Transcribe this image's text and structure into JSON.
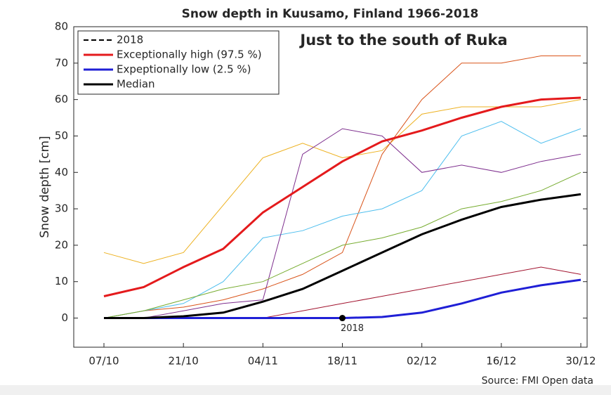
{
  "chart_data": {
    "type": "line",
    "title": "Snow depth in Kuusamo, Finland 1966-2018",
    "subtitle": "Just to the south of Ruka",
    "ylabel": "Snow depth [cm]",
    "source": "Source: FMI Open data",
    "annotation": "2018",
    "categories": [
      "07/10",
      null,
      "21/10",
      null,
      "04/11",
      null,
      "18/11",
      null,
      "02/12",
      null,
      "16/12",
      null,
      "30/12"
    ],
    "ylim": [
      -8,
      80
    ],
    "yticks": [
      0,
      10,
      20,
      30,
      40,
      50,
      60,
      70,
      80
    ],
    "legend": "upper left",
    "background_series": [
      {
        "color": "#edb120",
        "values": [
          18,
          15,
          18,
          31,
          44,
          48,
          44,
          46,
          56,
          58,
          58,
          58,
          60
        ]
      },
      {
        "color": "#d95319",
        "values": [
          0,
          2,
          3,
          5,
          8,
          12,
          18,
          45,
          60,
          70,
          70,
          72,
          72
        ]
      },
      {
        "color": "#4dbeee",
        "values": [
          0,
          2,
          4,
          10,
          22,
          24,
          28,
          30,
          35,
          50,
          54,
          48,
          52
        ]
      },
      {
        "color": "#7e2f8e",
        "values": [
          0,
          0,
          2,
          4,
          5,
          45,
          52,
          50,
          40,
          42,
          40,
          43,
          45
        ]
      },
      {
        "color": "#77ac30",
        "values": [
          0,
          2,
          5,
          8,
          10,
          15,
          20,
          22,
          25,
          30,
          32,
          35,
          40
        ]
      },
      {
        "color": "#a2142f",
        "values": [
          0,
          0,
          0,
          0,
          0,
          2,
          4,
          6,
          8,
          10,
          12,
          14,
          12
        ]
      }
    ],
    "series": [
      {
        "name": "2018",
        "color": "#000000",
        "linestyle": "dashed",
        "values": [
          0,
          0,
          0,
          0,
          0,
          0,
          0,
          null,
          null,
          null,
          null,
          null,
          null
        ]
      },
      {
        "name": "Exceptionally high (97.5 %)",
        "color": "#e41a1c",
        "linestyle": "solid",
        "values": [
          6,
          8.5,
          14,
          19,
          29,
          36,
          43,
          48.5,
          51.5,
          55,
          58,
          60,
          60.5
        ]
      },
      {
        "name": "Expeptionally low (2.5 %)",
        "color": "#1f1fd6",
        "linestyle": "solid",
        "values": [
          0,
          0,
          0,
          0,
          0,
          0,
          0,
          0.3,
          1.5,
          4,
          7,
          9,
          10.5
        ]
      },
      {
        "name": "Median",
        "color": "#000000",
        "linestyle": "solid",
        "values": [
          0,
          0,
          0.5,
          1.5,
          4.5,
          8,
          13,
          18,
          23,
          27,
          30.5,
          32.5,
          34
        ]
      }
    ]
  }
}
